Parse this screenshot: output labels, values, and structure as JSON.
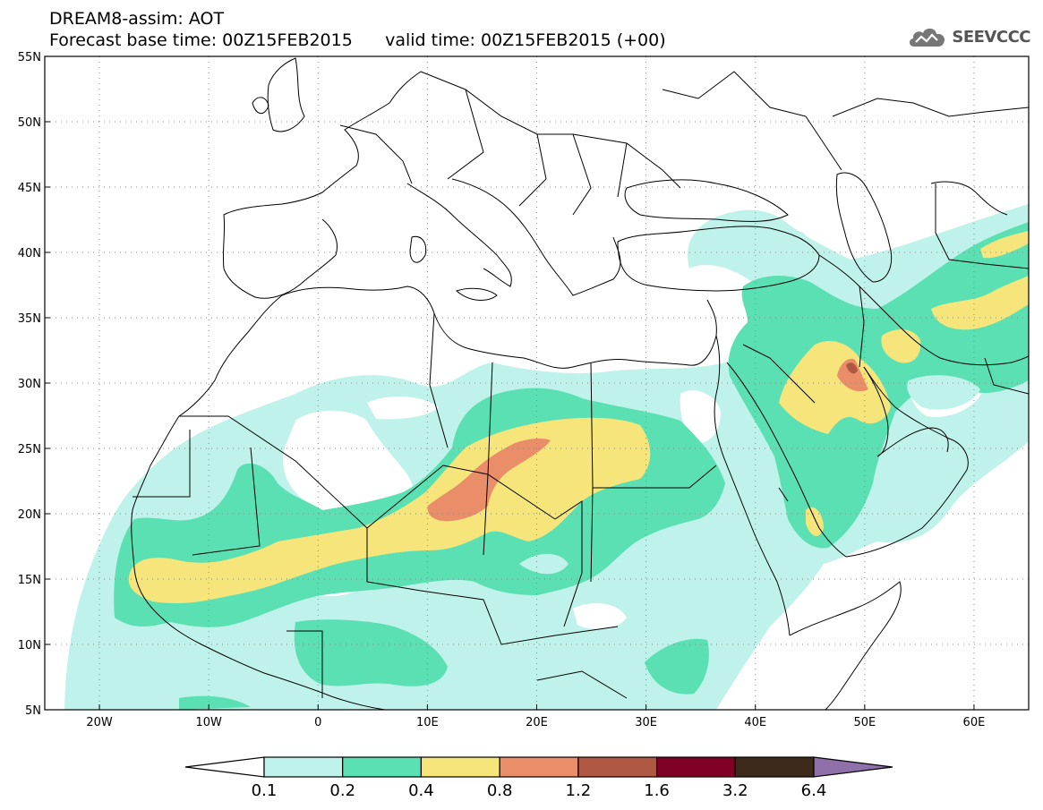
{
  "header": {
    "title": "DREAM8-assim: AOT",
    "base_time_label": "Forecast base time: 00Z15FEB2015",
    "valid_time_label": "valid time: 00Z15FEB2015 (+00)"
  },
  "logo": {
    "text": "SEEVCCC",
    "icon": "cloud-icon"
  },
  "map": {
    "lon_range": [
      -25,
      65
    ],
    "lat_range": [
      5,
      55
    ],
    "lat_ticks": [
      {
        "value": 55,
        "label": "55N"
      },
      {
        "value": 50,
        "label": "50N"
      },
      {
        "value": 45,
        "label": "45N"
      },
      {
        "value": 40,
        "label": "40N"
      },
      {
        "value": 35,
        "label": "35N"
      },
      {
        "value": 30,
        "label": "30N"
      },
      {
        "value": 25,
        "label": "25N"
      },
      {
        "value": 20,
        "label": "20N"
      },
      {
        "value": 15,
        "label": "15N"
      },
      {
        "value": 10,
        "label": "10N"
      },
      {
        "value": 5,
        "label": "5N"
      }
    ],
    "lon_ticks": [
      {
        "value": -20,
        "label": "20W"
      },
      {
        "value": -10,
        "label": "10W"
      },
      {
        "value": 0,
        "label": "0"
      },
      {
        "value": 10,
        "label": "10E"
      },
      {
        "value": 20,
        "label": "20E"
      },
      {
        "value": 30,
        "label": "30E"
      },
      {
        "value": 40,
        "label": "40E"
      },
      {
        "value": 50,
        "label": "50E"
      },
      {
        "value": 60,
        "label": "60E"
      }
    ],
    "grid": "dotted"
  },
  "colorbar": {
    "levels": [
      "0.1",
      "0.2",
      "0.4",
      "0.8",
      "1.2",
      "1.6",
      "3.2",
      "6.4"
    ],
    "colors": [
      "#ffffff",
      "#bff2ea",
      "#5ae0b2",
      "#f5e57a",
      "#ea8e6a",
      "#b05844",
      "#800026",
      "#3e2a1a",
      "#9070a8"
    ]
  },
  "fill_colors": {
    "c1": "#bff2ea",
    "c2": "#5ae0b2",
    "c3": "#f5e57a",
    "c4": "#ea8e6a",
    "c5": "#b05844"
  }
}
